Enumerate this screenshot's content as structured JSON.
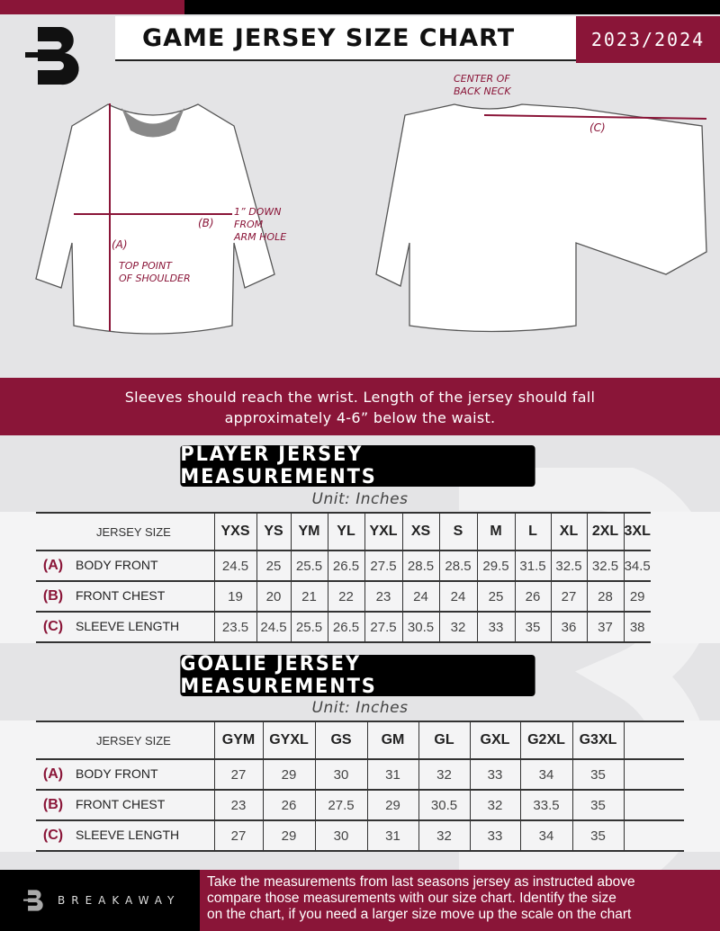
{
  "header": {
    "title": "GAME JERSEY SIZE CHART",
    "season": "2023/2024",
    "logo_letter": "B"
  },
  "diagram": {
    "labels": {
      "a": "(A)",
      "b": "(B)",
      "c": "(C)"
    },
    "top_point_of_shoulder": [
      "TOP POINT",
      "OF SHOULDER"
    ],
    "down_from_arm_hole": [
      "1” DOWN",
      "FROM",
      "ARM HOLE"
    ],
    "center_of_back_neck": [
      "CENTER OF",
      "BACK NECK"
    ]
  },
  "instructions": [
    "Sleeves should reach the wrist. Length of the jersey should fall",
    "approximately 4-6” below the waist."
  ],
  "player": {
    "heading": "PLAYER JERSEY MEASUREMENTS",
    "unit": "Unit: Inches",
    "size_header": "JERSEY SIZE",
    "sizes": [
      "YXS",
      "YS",
      "YM",
      "YL",
      "YXL",
      "XS",
      "S",
      "M",
      "L",
      "XL",
      "2XL",
      "3XL"
    ],
    "rows": [
      {
        "code": "(A)",
        "label": "BODY FRONT",
        "values": [
          "24.5",
          "25",
          "25.5",
          "26.5",
          "27.5",
          "28.5",
          "28.5",
          "29.5",
          "31.5",
          "32.5",
          "32.5",
          "34.5"
        ]
      },
      {
        "code": "(B)",
        "label": "FRONT CHEST",
        "values": [
          "19",
          "20",
          "21",
          "22",
          "23",
          "24",
          "24",
          "25",
          "26",
          "27",
          "28",
          "29"
        ]
      },
      {
        "code": "(C)",
        "label": "SLEEVE LENGTH",
        "values": [
          "23.5",
          "24.5",
          "25.5",
          "26.5",
          "27.5",
          "30.5",
          "32",
          "33",
          "35",
          "36",
          "37",
          "38"
        ]
      }
    ]
  },
  "goalie": {
    "heading": "GOALIE JERSEY MEASUREMENTS",
    "unit": "Unit: Inches",
    "size_header": "JERSEY SIZE",
    "sizes": [
      "GYM",
      "GYXL",
      "GS",
      "GM",
      "GL",
      "GXL",
      "G2XL",
      "G3XL",
      ""
    ],
    "rows": [
      {
        "code": "(A)",
        "label": "BODY FRONT",
        "values": [
          "27",
          "29",
          "30",
          "31",
          "32",
          "33",
          "34",
          "35",
          ""
        ]
      },
      {
        "code": "(B)",
        "label": "FRONT CHEST",
        "values": [
          "23",
          "26",
          "27.5",
          "29",
          "30.5",
          "32",
          "33.5",
          "35",
          ""
        ]
      },
      {
        "code": "(C)",
        "label": "SLEEVE LENGTH",
        "values": [
          "27",
          "29",
          "30",
          "31",
          "32",
          "33",
          "34",
          "35",
          ""
        ]
      }
    ]
  },
  "footer": {
    "brand": "BREAKAWAY",
    "text": [
      "Take the measurements from last seasons jersey as instructed above",
      "compare those measurements  with our size chart. Identify the size",
      "on the chart, if you need a larger size move up the scale on the chart"
    ]
  },
  "colors": {
    "accent": "#8a1538",
    "dark": "#000000",
    "background": "#e4e4e6"
  }
}
